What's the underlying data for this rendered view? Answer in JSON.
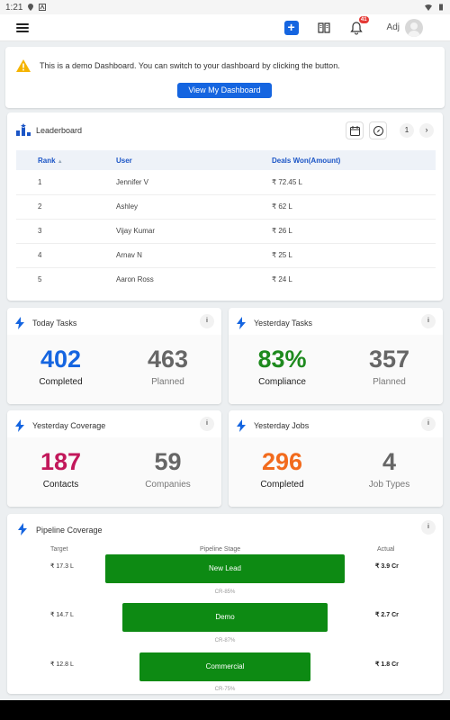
{
  "status_bar": {
    "time": "1:21"
  },
  "topbar": {
    "add_label": "+",
    "notification_count": "41",
    "user_name": "Adj"
  },
  "demo": {
    "message": "This is a demo Dashboard. You can switch to your dashboard by clicking the button.",
    "button_label": "View My Dashboard"
  },
  "leaderboard": {
    "title": "Leaderboard",
    "page": "1",
    "columns": [
      "Rank",
      "User",
      "Deals Won(Amount)"
    ],
    "rows": [
      {
        "rank": "1",
        "user": "Jennifer V",
        "amount": "₹ 72.45 L"
      },
      {
        "rank": "2",
        "user": "Ashley",
        "amount": "₹ 62 L"
      },
      {
        "rank": "3",
        "user": "Vijay Kumar",
        "amount": "₹ 26 L"
      },
      {
        "rank": "4",
        "user": "Arnav N",
        "amount": "₹ 25 L"
      },
      {
        "rank": "5",
        "user": "Aaron Ross",
        "amount": "₹ 24 L"
      }
    ]
  },
  "stats": [
    {
      "title": "Today Tasks",
      "value1": "402",
      "label1": "Completed",
      "value2": "463",
      "label2": "Planned",
      "color1": "#1565e0"
    },
    {
      "title": "Yesterday Tasks",
      "value1": "83%",
      "label1": "Compliance",
      "value2": "357",
      "label2": "Planned",
      "color1": "#1e8a1e"
    },
    {
      "title": "Yesterday Coverage",
      "value1": "187",
      "label1": "Contacts",
      "value2": "59",
      "label2": "Companies",
      "color1": "#c2185b"
    },
    {
      "title": "Yesterday Jobs",
      "value1": "296",
      "label1": "Completed",
      "value2": "4",
      "label2": "Job Types",
      "color1": "#f26b1d"
    }
  ],
  "pipeline": {
    "title": "Pipeline Coverage",
    "headers": {
      "target": "Target",
      "stage": "Pipeline Stage",
      "actual": "Actual"
    },
    "rows": [
      {
        "target": "₹ 17.3 L",
        "stage": "New Lead",
        "actual": "₹ 3.9 Cr",
        "cr": "CR-85%"
      },
      {
        "target": "₹ 14.7 L",
        "stage": "Demo",
        "actual": "₹ 2.7 Cr",
        "cr": "CR-87%"
      },
      {
        "target": "₹ 12.8 L",
        "stage": "Commercial",
        "actual": "₹ 1.8 Cr",
        "cr": "CR-75%"
      }
    ]
  },
  "colors": {
    "accent": "#1565e0",
    "muted": "#666666",
    "stage_bar": "#0d8a13"
  }
}
